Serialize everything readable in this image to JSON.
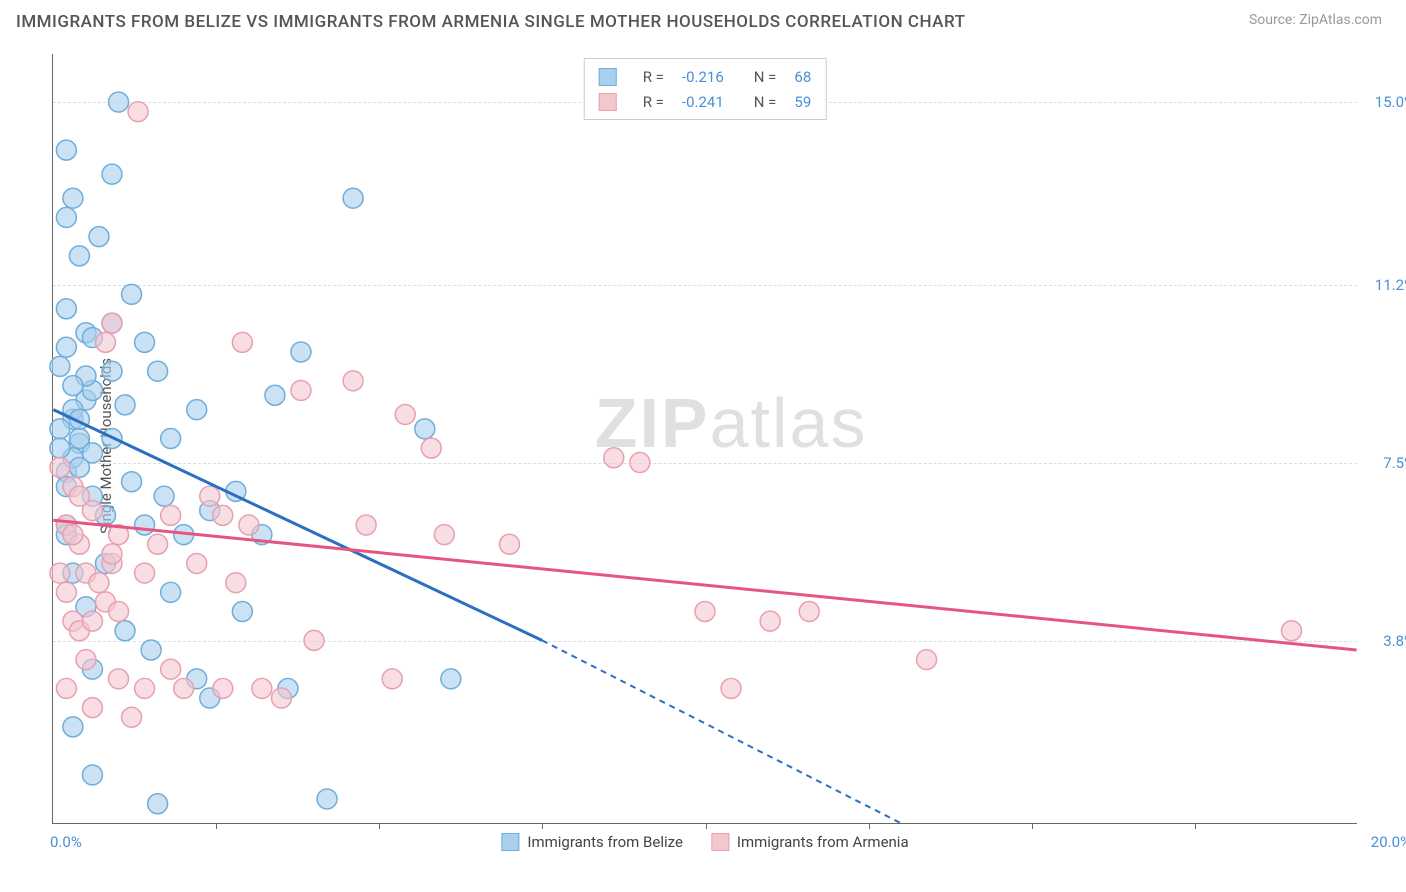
{
  "title": "IMMIGRANTS FROM BELIZE VS IMMIGRANTS FROM ARMENIA SINGLE MOTHER HOUSEHOLDS CORRELATION CHART",
  "source": "Source: ZipAtlas.com",
  "watermark_a": "ZIP",
  "watermark_b": "atlas",
  "chart": {
    "type": "scatter-with-regression",
    "x_axis": {
      "min": 0.0,
      "max": 20.0,
      "label_min": "0.0%",
      "label_max": "20.0%",
      "tick_step": 2.5
    },
    "y_axis": {
      "min": 0.0,
      "max": 16.0,
      "label": "Single Mother Households",
      "ticks": [
        {
          "v": 15.0,
          "label": "15.0%"
        },
        {
          "v": 11.2,
          "label": "11.2%"
        },
        {
          "v": 7.5,
          "label": "7.5%"
        },
        {
          "v": 3.8,
          "label": "3.8%"
        }
      ]
    },
    "series": [
      {
        "id": "belize",
        "name": "Immigrants from Belize",
        "color_fill": "#a9cfec",
        "color_stroke": "#6faedb",
        "trend_color": "#2b6fc2",
        "marker_radius": 10,
        "R": "-0.216",
        "N": "68",
        "trend": {
          "x1": 0.0,
          "y1": 8.6,
          "x2_solid": 7.5,
          "y2_solid": 3.8,
          "x2_dash": 13.0,
          "y2_dash": 0.0
        },
        "points": [
          [
            0.2,
            7.3
          ],
          [
            0.3,
            8.4
          ],
          [
            0.4,
            7.9
          ],
          [
            0.2,
            6.2
          ],
          [
            0.1,
            9.5
          ],
          [
            0.5,
            10.2
          ],
          [
            0.4,
            8.0
          ],
          [
            0.3,
            7.6
          ],
          [
            1.0,
            15.0
          ],
          [
            0.9,
            13.5
          ],
          [
            0.7,
            12.2
          ],
          [
            1.2,
            11.0
          ],
          [
            0.4,
            11.8
          ],
          [
            0.6,
            10.1
          ],
          [
            0.9,
            9.4
          ],
          [
            1.1,
            8.7
          ],
          [
            1.4,
            10.0
          ],
          [
            1.6,
            9.4
          ],
          [
            1.8,
            8.0
          ],
          [
            2.2,
            8.6
          ],
          [
            0.2,
            6.0
          ],
          [
            0.3,
            5.2
          ],
          [
            0.5,
            4.5
          ],
          [
            0.6,
            6.8
          ],
          [
            0.8,
            5.4
          ],
          [
            0.8,
            6.4
          ],
          [
            1.2,
            7.1
          ],
          [
            1.4,
            6.2
          ],
          [
            1.7,
            6.8
          ],
          [
            2.0,
            6.0
          ],
          [
            2.4,
            6.5
          ],
          [
            2.8,
            6.9
          ],
          [
            3.2,
            6.0
          ],
          [
            3.4,
            8.9
          ],
          [
            3.8,
            9.8
          ],
          [
            4.6,
            13.0
          ],
          [
            0.6,
            3.2
          ],
          [
            0.3,
            2.0
          ],
          [
            1.1,
            4.0
          ],
          [
            1.5,
            3.6
          ],
          [
            1.8,
            4.8
          ],
          [
            2.2,
            3.0
          ],
          [
            2.4,
            2.6
          ],
          [
            2.9,
            4.4
          ],
          [
            3.6,
            2.8
          ],
          [
            4.2,
            0.5
          ],
          [
            5.7,
            8.2
          ],
          [
            6.1,
            3.0
          ],
          [
            1.6,
            0.4
          ],
          [
            0.6,
            1.0
          ],
          [
            0.2,
            12.6
          ],
          [
            0.1,
            8.2
          ],
          [
            0.5,
            8.8
          ],
          [
            0.2,
            9.9
          ],
          [
            0.6,
            9.0
          ],
          [
            0.9,
            10.4
          ],
          [
            0.3,
            13.0
          ],
          [
            0.2,
            14.0
          ],
          [
            0.2,
            7.0
          ],
          [
            0.1,
            7.8
          ],
          [
            0.4,
            7.4
          ],
          [
            0.3,
            8.6
          ],
          [
            0.2,
            10.7
          ],
          [
            0.9,
            8.0
          ],
          [
            0.4,
            8.4
          ],
          [
            0.6,
            7.7
          ],
          [
            0.5,
            9.3
          ],
          [
            0.3,
            9.1
          ]
        ]
      },
      {
        "id": "armenia",
        "name": "Immigrants from Armenia",
        "color_fill": "#f4c7d0",
        "color_stroke": "#e8a0b0",
        "trend_color": "#e75480",
        "marker_radius": 10,
        "R": "-0.241",
        "N": "59",
        "trend": {
          "x1": 0.0,
          "y1": 6.3,
          "x2_solid": 20.0,
          "y2_solid": 3.6,
          "x2_dash": 20.0,
          "y2_dash": 3.6
        },
        "points": [
          [
            0.1,
            7.4
          ],
          [
            0.2,
            6.2
          ],
          [
            0.3,
            7.0
          ],
          [
            0.4,
            5.8
          ],
          [
            0.5,
            5.2
          ],
          [
            0.6,
            6.5
          ],
          [
            0.7,
            5.0
          ],
          [
            0.3,
            4.2
          ],
          [
            0.2,
            4.8
          ],
          [
            0.4,
            4.0
          ],
          [
            0.5,
            3.4
          ],
          [
            0.9,
            5.4
          ],
          [
            1.0,
            6.0
          ],
          [
            1.4,
            5.2
          ],
          [
            1.6,
            5.8
          ],
          [
            1.8,
            6.4
          ],
          [
            2.2,
            5.4
          ],
          [
            2.4,
            6.8
          ],
          [
            2.8,
            5.0
          ],
          [
            3.2,
            2.8
          ],
          [
            3.5,
            2.6
          ],
          [
            3.8,
            9.0
          ],
          [
            0.9,
            10.4
          ],
          [
            1.3,
            14.8
          ],
          [
            2.9,
            10.0
          ],
          [
            4.6,
            9.2
          ],
          [
            5.8,
            7.8
          ],
          [
            7.0,
            5.8
          ],
          [
            8.6,
            7.6
          ],
          [
            9.0,
            7.5
          ],
          [
            10.0,
            4.4
          ],
          [
            10.4,
            2.8
          ],
          [
            11.0,
            4.2
          ],
          [
            11.6,
            4.4
          ],
          [
            13.4,
            3.4
          ],
          [
            19.0,
            4.0
          ],
          [
            0.2,
            2.8
          ],
          [
            0.6,
            2.4
          ],
          [
            1.0,
            3.0
          ],
          [
            1.2,
            2.2
          ],
          [
            1.4,
            2.8
          ],
          [
            1.8,
            3.2
          ],
          [
            2.0,
            2.8
          ],
          [
            2.6,
            2.8
          ],
          [
            2.6,
            6.4
          ],
          [
            3.0,
            6.2
          ],
          [
            4.0,
            3.8
          ],
          [
            4.8,
            6.2
          ],
          [
            5.2,
            3.0
          ],
          [
            5.4,
            8.5
          ],
          [
            6.0,
            6.0
          ],
          [
            0.8,
            4.6
          ],
          [
            0.6,
            4.2
          ],
          [
            1.0,
            4.4
          ],
          [
            0.3,
            6.0
          ],
          [
            0.1,
            5.2
          ],
          [
            0.4,
            6.8
          ],
          [
            0.8,
            10.0
          ],
          [
            0.9,
            5.6
          ]
        ]
      }
    ]
  }
}
